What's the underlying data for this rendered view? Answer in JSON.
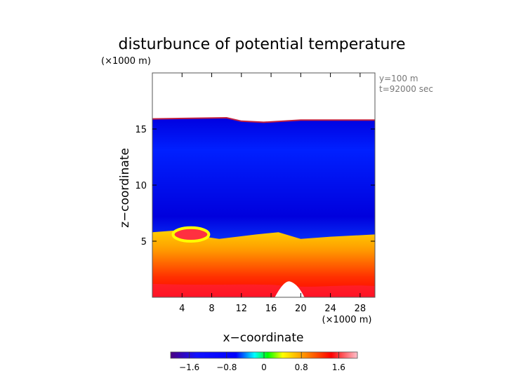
{
  "chart_data": {
    "type": "heatmap",
    "title": "disturbunce of potential temperature",
    "xlabel": "x−coordinate",
    "ylabel": "z−coordinate",
    "x_unit": "(×1000 m)",
    "y_unit": "(×1000 m)",
    "annotations": [
      "y=100  m",
      "t=92000 sec"
    ],
    "xlim": [
      0,
      30
    ],
    "ylim": [
      0,
      20
    ],
    "x_ticks": [
      4,
      8,
      12,
      16,
      20,
      24,
      28
    ],
    "x_tick_labels": [
      "4",
      "8",
      "12",
      "16",
      "20",
      "24",
      "28"
    ],
    "y_ticks": [
      5,
      10,
      15
    ],
    "y_tick_labels": [
      "5",
      "10",
      "15"
    ],
    "colorbar": {
      "range": [
        -2.0,
        2.0
      ],
      "ticks": [
        -1.6,
        -0.8,
        0,
        0.8,
        1.6
      ],
      "tick_labels": [
        "−1.6",
        "−0.8",
        "0",
        "0.8",
        "1.6"
      ],
      "colors": [
        "#4b0082",
        "#0000ff",
        "#00ffff",
        "#00ff00",
        "#ffff00",
        "#ff8c00",
        "#ff0000",
        "#ffc0cb"
      ]
    },
    "field": {
      "domain_top_km": [
        [
          0,
          15.9
        ],
        [
          10,
          16.0
        ],
        [
          12,
          15.7
        ],
        [
          15,
          15.6
        ],
        [
          20,
          15.8
        ],
        [
          30,
          15.8
        ]
      ],
      "transition_height_km": [
        [
          0,
          5.8
        ],
        [
          4,
          6.0
        ],
        [
          6,
          5.5
        ],
        [
          9,
          5.2
        ],
        [
          14,
          5.6
        ],
        [
          17,
          5.8
        ],
        [
          20,
          5.2
        ],
        [
          24,
          5.4
        ],
        [
          30,
          5.6
        ]
      ],
      "values_summary": [
        {
          "region": "upper layer above ~6 km",
          "value": -1.4
        },
        {
          "region": "lower layer below ~5 km",
          "value": 1.2
        },
        {
          "region": "near surface",
          "value": 1.7
        },
        {
          "region": "bubble near x=5, z=5.5",
          "value": 1.5
        },
        {
          "region": "surface at x≈18.5",
          "value": 2.0
        }
      ]
    }
  }
}
